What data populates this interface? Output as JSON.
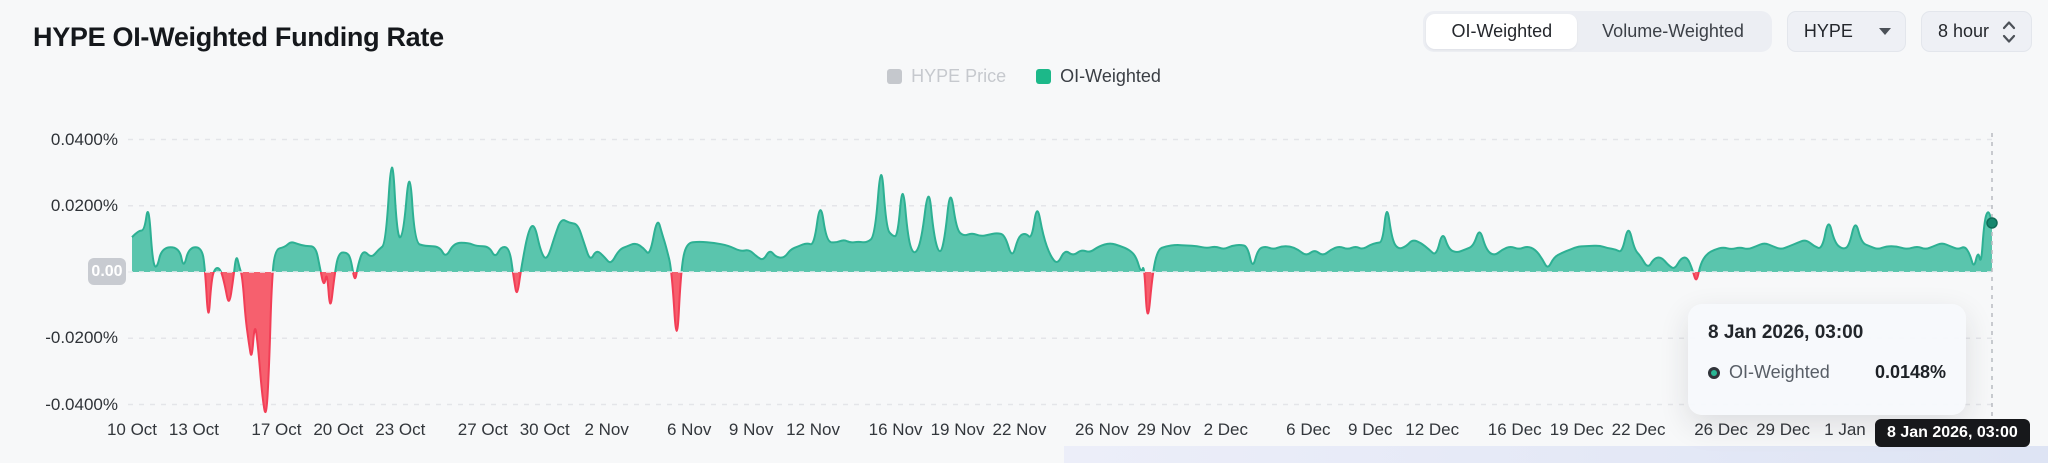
{
  "header": {
    "title": "HYPE OI-Weighted Funding Rate"
  },
  "controls": {
    "weight_toggle": {
      "options": [
        {
          "label": "OI-Weighted",
          "active": true
        },
        {
          "label": "Volume-Weighted",
          "active": false
        }
      ]
    },
    "asset_select": {
      "value": "HYPE"
    },
    "interval_select": {
      "value": "8 hour"
    }
  },
  "legend": {
    "items": [
      {
        "label": "HYPE Price",
        "color": "#c5c8cd",
        "disabled": true
      },
      {
        "label": "OI-Weighted",
        "color": "#1cb889",
        "disabled": false
      }
    ]
  },
  "tooltip": {
    "date": "8 Jan 2026, 03:00",
    "series": "OI-Weighted",
    "value": "0.0148%"
  },
  "axis_tooltip": {
    "text": "8 Jan 2026, 03:00"
  },
  "colors": {
    "background": "#f7f8f9",
    "positive_fill": "#5ac5ad",
    "positive_stroke": "#2db093",
    "negative_fill": "#f6606e",
    "negative_stroke": "#f23e56",
    "gridline": "#e4e5e9",
    "baseline_overlay": "#eef0f2",
    "crosshair": "#b8bbc1",
    "end_dot": "#15876e",
    "zero_badge_bg": "#c8cbd1"
  },
  "chart_data": {
    "type": "area",
    "title": "HYPE OI-Weighted Funding Rate",
    "series_name": "OI-Weighted",
    "unit": "%",
    "grid": true,
    "legend_position": "top-center",
    "ylim": [
      -0.052,
      0.0535
    ],
    "y_ticks": [
      {
        "label": "0.0400%",
        "value": 0.04
      },
      {
        "label": "0.0200%",
        "value": 0.02
      },
      {
        "label": "0.00",
        "value": 0,
        "badge": true
      },
      {
        "label": "-0.0200%",
        "value": -0.02
      },
      {
        "label": "-0.0400%",
        "value": -0.04
      }
    ],
    "x_domain_days": [
      0,
      90.125
    ],
    "x_ticks": [
      {
        "label": "10 Oct",
        "day": 0
      },
      {
        "label": "13 Oct",
        "day": 3
      },
      {
        "label": "17 Oct",
        "day": 7
      },
      {
        "label": "20 Oct",
        "day": 10
      },
      {
        "label": "23 Oct",
        "day": 13
      },
      {
        "label": "27 Oct",
        "day": 17
      },
      {
        "label": "30 Oct",
        "day": 20
      },
      {
        "label": "2 Nov",
        "day": 23
      },
      {
        "label": "6 Nov",
        "day": 27
      },
      {
        "label": "9 Nov",
        "day": 30
      },
      {
        "label": "12 Nov",
        "day": 33
      },
      {
        "label": "16 Nov",
        "day": 37
      },
      {
        "label": "19 Nov",
        "day": 40
      },
      {
        "label": "22 Nov",
        "day": 43
      },
      {
        "label": "26 Nov",
        "day": 47
      },
      {
        "label": "29 Nov",
        "day": 50
      },
      {
        "label": "2 Dec",
        "day": 53
      },
      {
        "label": "6 Dec",
        "day": 57
      },
      {
        "label": "9 Dec",
        "day": 60
      },
      {
        "label": "12 Dec",
        "day": 63
      },
      {
        "label": "16 Dec",
        "day": 67
      },
      {
        "label": "19 Dec",
        "day": 70
      },
      {
        "label": "22 Dec",
        "day": 73
      },
      {
        "label": "26 Dec",
        "day": 77
      },
      {
        "label": "29 Dec",
        "day": 80
      },
      {
        "label": "1 Jan",
        "day": 83
      }
    ],
    "end_marker": {
      "day": 90.125,
      "value": 0.0148,
      "date": "8 Jan 2026, 03:00"
    },
    "points": [
      [
        0,
        0.0105
      ],
      [
        0.3,
        0.0125
      ],
      [
        0.6,
        0.0125
      ],
      [
        0.8,
        0.021
      ],
      [
        1,
        0.003
      ],
      [
        1.2,
        0.0008
      ],
      [
        1.45,
        0.0075
      ],
      [
        2.3,
        0.0075
      ],
      [
        2.5,
        0.0008
      ],
      [
        2.75,
        0.0075
      ],
      [
        3.4,
        0.0075
      ],
      [
        3.55,
        0
      ],
      [
        3.7,
        -0.016
      ],
      [
        3.85,
        -0.002
      ],
      [
        4.05,
        0.0015
      ],
      [
        4.3,
        0.0008
      ],
      [
        4.5,
        -0.004
      ],
      [
        4.7,
        -0.0105
      ],
      [
        4.9,
        -0.0025
      ],
      [
        5.05,
        0.0055
      ],
      [
        5.2,
        0.0015
      ],
      [
        5.35,
        -0.0015
      ],
      [
        5.5,
        -0.014
      ],
      [
        5.65,
        -0.021
      ],
      [
        5.8,
        -0.027
      ],
      [
        5.95,
        -0.015
      ],
      [
        6.1,
        -0.022
      ],
      [
        6.3,
        -0.037
      ],
      [
        6.5,
        -0.045
      ],
      [
        6.65,
        -0.028
      ],
      [
        6.75,
        -0.006
      ],
      [
        6.9,
        0.0068
      ],
      [
        7.4,
        0.0075
      ],
      [
        7.7,
        0.0092
      ],
      [
        8,
        0.0085
      ],
      [
        8.4,
        0.0078
      ],
      [
        8.9,
        0.0078
      ],
      [
        9.1,
        0.0015
      ],
      [
        9.3,
        -0.0048
      ],
      [
        9.45,
        0.0005
      ],
      [
        9.6,
        -0.0125
      ],
      [
        9.8,
        -0.0015
      ],
      [
        10,
        0.0058
      ],
      [
        10.4,
        0.006
      ],
      [
        10.6,
        0.0042
      ],
      [
        10.8,
        -0.0035
      ],
      [
        10.95,
        0.0022
      ],
      [
        11.2,
        0.0068
      ],
      [
        11.6,
        0.0042
      ],
      [
        11.95,
        0.0068
      ],
      [
        12.3,
        0.0085
      ],
      [
        12.6,
        0.039
      ],
      [
        12.85,
        0.0098
      ],
      [
        13.15,
        0.0112
      ],
      [
        13.45,
        0.033
      ],
      [
        13.7,
        0.0088
      ],
      [
        14.2,
        0.0078
      ],
      [
        14.9,
        0.0078
      ],
      [
        15.2,
        0.0042
      ],
      [
        15.6,
        0.0088
      ],
      [
        16.3,
        0.0088
      ],
      [
        16.7,
        0.0078
      ],
      [
        17.3,
        0.0078
      ],
      [
        17.6,
        0.0042
      ],
      [
        17.9,
        0.0078
      ],
      [
        18.3,
        0.0072
      ],
      [
        18.5,
        -0.002
      ],
      [
        18.65,
        -0.0078
      ],
      [
        18.85,
        0.0008
      ],
      [
        19.2,
        0.0125
      ],
      [
        19.5,
        0.0148
      ],
      [
        19.8,
        0.0062
      ],
      [
        20.1,
        0.0032
      ],
      [
        20.5,
        0.0112
      ],
      [
        20.8,
        0.0162
      ],
      [
        21.2,
        0.0148
      ],
      [
        21.6,
        0.0145
      ],
      [
        21.9,
        0.0088
      ],
      [
        22.2,
        0.0032
      ],
      [
        22.5,
        0.0068
      ],
      [
        22.9,
        0.0045
      ],
      [
        23.2,
        0.0022
      ],
      [
        23.6,
        0.0068
      ],
      [
        24,
        0.0078
      ],
      [
        24.4,
        0.0088
      ],
      [
        24.8,
        0.0072
      ],
      [
        25.1,
        0.0048
      ],
      [
        25.45,
        0.0168
      ],
      [
        25.7,
        0.0112
      ],
      [
        25.9,
        0.0072
      ],
      [
        26.15,
        0.0008
      ],
      [
        26.4,
        -0.024
      ],
      [
        26.6,
        0.0008
      ],
      [
        26.85,
        0.0088
      ],
      [
        27.5,
        0.0092
      ],
      [
        28.2,
        0.0088
      ],
      [
        28.9,
        0.008
      ],
      [
        29.5,
        0.0062
      ],
      [
        29.9,
        0.0068
      ],
      [
        30.3,
        0.0045
      ],
      [
        30.6,
        0.0035
      ],
      [
        30.9,
        0.0068
      ],
      [
        31.2,
        0.0045
      ],
      [
        31.6,
        0.0042
      ],
      [
        31.9,
        0.0068
      ],
      [
        32.3,
        0.0078
      ],
      [
        32.7,
        0.0088
      ],
      [
        33.05,
        0.008
      ],
      [
        33.35,
        0.022
      ],
      [
        33.65,
        0.0092
      ],
      [
        34.1,
        0.0088
      ],
      [
        34.5,
        0.0098
      ],
      [
        34.8,
        0.0088
      ],
      [
        35.2,
        0.0092
      ],
      [
        35.6,
        0.0088
      ],
      [
        36,
        0.0108
      ],
      [
        36.3,
        0.035
      ],
      [
        36.55,
        0.0132
      ],
      [
        36.85,
        0.0108
      ],
      [
        37.1,
        0.0108
      ],
      [
        37.35,
        0.028
      ],
      [
        37.6,
        0.0098
      ],
      [
        37.9,
        0.0048
      ],
      [
        38.25,
        0.0092
      ],
      [
        38.6,
        0.027
      ],
      [
        38.85,
        0.0108
      ],
      [
        39.15,
        0.0048
      ],
      [
        39.4,
        0.0108
      ],
      [
        39.65,
        0.026
      ],
      [
        39.95,
        0.0128
      ],
      [
        40.3,
        0.0108
      ],
      [
        40.7,
        0.0118
      ],
      [
        41.1,
        0.0108
      ],
      [
        41.5,
        0.0112
      ],
      [
        41.9,
        0.0118
      ],
      [
        42.3,
        0.0112
      ],
      [
        42.65,
        0.0038
      ],
      [
        42.95,
        0.0108
      ],
      [
        43.3,
        0.0118
      ],
      [
        43.6,
        0.0098
      ],
      [
        43.85,
        0.021
      ],
      [
        44.15,
        0.0108
      ],
      [
        44.5,
        0.0048
      ],
      [
        44.85,
        0.0022
      ],
      [
        45.2,
        0.0068
      ],
      [
        45.6,
        0.0048
      ],
      [
        46,
        0.0068
      ],
      [
        46.4,
        0.0058
      ],
      [
        46.85,
        0.0078
      ],
      [
        47.4,
        0.0088
      ],
      [
        47.9,
        0.0078
      ],
      [
        48.3,
        0.0068
      ],
      [
        48.65,
        0.0048
      ],
      [
        48.9,
        -0.0005
      ],
      [
        49.05,
        0.0025
      ],
      [
        49.2,
        -0.017
      ],
      [
        49.45,
        -0.0005
      ],
      [
        49.7,
        0.0068
      ],
      [
        50.1,
        0.0078
      ],
      [
        50.6,
        0.0082
      ],
      [
        51.1,
        0.008
      ],
      [
        51.6,
        0.0078
      ],
      [
        52.1,
        0.0072
      ],
      [
        52.5,
        0.0078
      ],
      [
        52.9,
        0.0068
      ],
      [
        53.3,
        0.008
      ],
      [
        53.7,
        0.0082
      ],
      [
        54.05,
        0.0078
      ],
      [
        54.3,
        0.0008
      ],
      [
        54.55,
        0.0068
      ],
      [
        54.9,
        0.0078
      ],
      [
        55.3,
        0.0068
      ],
      [
        55.7,
        0.0078
      ],
      [
        56.1,
        0.0078
      ],
      [
        56.5,
        0.0068
      ],
      [
        56.9,
        0.0048
      ],
      [
        57.3,
        0.0068
      ],
      [
        57.7,
        0.0048
      ],
      [
        58.1,
        0.0068
      ],
      [
        58.5,
        0.0078
      ],
      [
        58.9,
        0.0068
      ],
      [
        59.3,
        0.0078
      ],
      [
        59.6,
        0.0068
      ],
      [
        60,
        0.0082
      ],
      [
        60.3,
        0.0088
      ],
      [
        60.6,
        0.009
      ],
      [
        60.8,
        0.021
      ],
      [
        61.05,
        0.0098
      ],
      [
        61.35,
        0.0068
      ],
      [
        61.75,
        0.0078
      ],
      [
        62.05,
        0.0098
      ],
      [
        62.45,
        0.0088
      ],
      [
        62.85,
        0.0068
      ],
      [
        63.2,
        0.0048
      ],
      [
        63.5,
        0.0125
      ],
      [
        63.8,
        0.0068
      ],
      [
        64.2,
        0.0058
      ],
      [
        64.6,
        0.0068
      ],
      [
        65,
        0.0078
      ],
      [
        65.3,
        0.0135
      ],
      [
        65.6,
        0.0068
      ],
      [
        66,
        0.0048
      ],
      [
        66.4,
        0.0068
      ],
      [
        66.8,
        0.0078
      ],
      [
        67.2,
        0.0068
      ],
      [
        67.6,
        0.0078
      ],
      [
        68,
        0.0068
      ],
      [
        68.35,
        0.0038
      ],
      [
        68.6,
        0.0008
      ],
      [
        68.9,
        0.0045
      ],
      [
        69.3,
        0.0058
      ],
      [
        69.7,
        0.0068
      ],
      [
        70.1,
        0.0078
      ],
      [
        70.6,
        0.0078
      ],
      [
        71.1,
        0.008
      ],
      [
        71.5,
        0.0072
      ],
      [
        71.9,
        0.0068
      ],
      [
        72.2,
        0.0058
      ],
      [
        72.5,
        0.0145
      ],
      [
        72.8,
        0.0068
      ],
      [
        73.1,
        0.0048
      ],
      [
        73.45,
        0.001
      ],
      [
        73.75,
        0.0042
      ],
      [
        74.1,
        0.0045
      ],
      [
        74.45,
        0.002
      ],
      [
        74.75,
        0.0008
      ],
      [
        75.05,
        0.0042
      ],
      [
        75.35,
        0.0045
      ],
      [
        75.6,
        0.001
      ],
      [
        75.8,
        -0.0035
      ],
      [
        76,
        0.0025
      ],
      [
        76.3,
        0.0055
      ],
      [
        76.7,
        0.0068
      ],
      [
        77.1,
        0.0075
      ],
      [
        77.5,
        0.0068
      ],
      [
        77.9,
        0.0075
      ],
      [
        78.3,
        0.0068
      ],
      [
        78.7,
        0.0078
      ],
      [
        79.1,
        0.0088
      ],
      [
        79.5,
        0.0078
      ],
      [
        79.9,
        0.0068
      ],
      [
        80.3,
        0.0078
      ],
      [
        80.7,
        0.0088
      ],
      [
        81.1,
        0.0098
      ],
      [
        81.5,
        0.0078
      ],
      [
        81.9,
        0.0068
      ],
      [
        82.2,
        0.0165
      ],
      [
        82.5,
        0.0088
      ],
      [
        82.9,
        0.0068
      ],
      [
        83.2,
        0.0078
      ],
      [
        83.5,
        0.016
      ],
      [
        83.8,
        0.0088
      ],
      [
        84.2,
        0.0078
      ],
      [
        84.6,
        0.0068
      ],
      [
        85,
        0.0078
      ],
      [
        85.5,
        0.0078
      ],
      [
        86,
        0.0068
      ],
      [
        86.5,
        0.0078
      ],
      [
        86.9,
        0.0068
      ],
      [
        87.3,
        0.0078
      ],
      [
        87.7,
        0.0088
      ],
      [
        88.1,
        0.0078
      ],
      [
        88.5,
        0.0068
      ],
      [
        88.8,
        0.0078
      ],
      [
        89.05,
        0.0055
      ],
      [
        89.25,
        0.001
      ],
      [
        89.45,
        0.0065
      ],
      [
        89.6,
        0.002
      ],
      [
        89.75,
        0.0155
      ],
      [
        89.95,
        0.019
      ],
      [
        90.125,
        0.0148
      ]
    ]
  }
}
